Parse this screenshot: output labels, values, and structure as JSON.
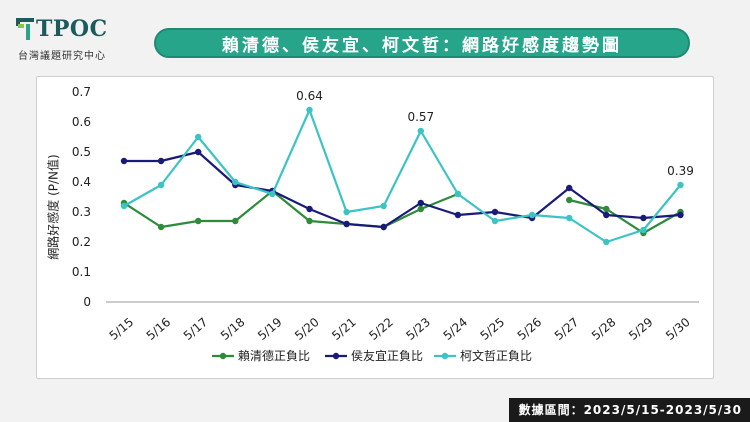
{
  "logo": {
    "name": "TPOC",
    "tagline": "台灣議題研究中心"
  },
  "header": {
    "title": "賴清德、侯友宜、柯文哲：網路好感度趨勢圖"
  },
  "footer": {
    "source": "數據區間：2023/5/15-2023/5/30"
  },
  "colors": {
    "brand": "#27a58a",
    "lai": "#2e8b3a",
    "hou": "#1a1a7a",
    "ko": "#3cc4c4"
  },
  "chart_data": {
    "type": "line",
    "title": "",
    "xlabel": "",
    "ylabel": "網路好感度 (P/N值)",
    "categories": [
      "5/15",
      "5/16",
      "5/17",
      "5/18",
      "5/19",
      "5/20",
      "5/21",
      "5/22",
      "5/23",
      "5/24",
      "5/25",
      "5/26",
      "5/27",
      "5/28",
      "5/29",
      "5/30"
    ],
    "yticks": [
      "0",
      "0.1",
      "0.2",
      "0.3",
      "0.4",
      "0.5",
      "0.6",
      "0.7"
    ],
    "ylim": [
      0,
      0.7
    ],
    "grid": false,
    "legend": "bottom",
    "series": [
      {
        "name": "賴清德正負比",
        "color": "#2e8b3a",
        "values": [
          0.33,
          0.25,
          0.27,
          0.27,
          0.37,
          0.27,
          0.26,
          0.25,
          0.31,
          0.36,
          null,
          null,
          0.34,
          0.31,
          0.23,
          0.3
        ]
      },
      {
        "name": "侯友宜正負比",
        "color": "#1a1a7a",
        "values": [
          0.47,
          0.47,
          0.5,
          0.39,
          0.37,
          0.31,
          0.26,
          0.25,
          0.33,
          0.29,
          0.3,
          0.28,
          0.38,
          0.29,
          0.28,
          0.29
        ]
      },
      {
        "name": "柯文哲正負比",
        "color": "#3cc4c4",
        "values": [
          0.32,
          0.39,
          0.55,
          0.4,
          0.36,
          0.64,
          0.3,
          0.32,
          0.57,
          0.36,
          0.27,
          0.29,
          0.28,
          0.2,
          0.24,
          0.39
        ]
      }
    ],
    "annotations": [
      {
        "series": 2,
        "index": 5,
        "text": "0.64"
      },
      {
        "series": 2,
        "index": 8,
        "text": "0.57"
      },
      {
        "series": 2,
        "index": 15,
        "text": "0.39"
      }
    ]
  }
}
